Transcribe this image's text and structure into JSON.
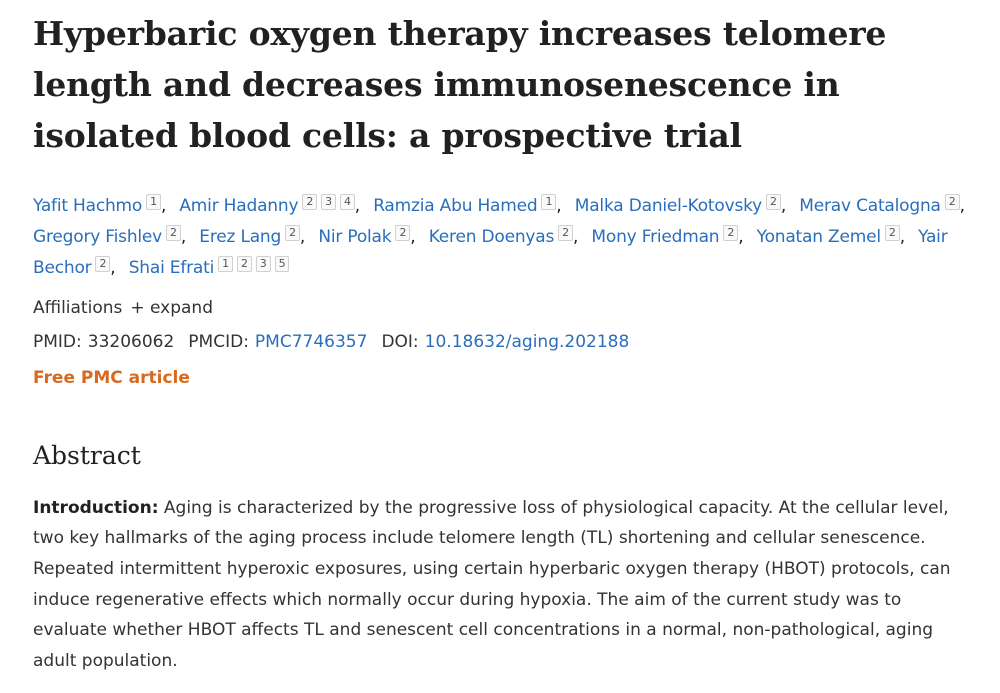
{
  "article": {
    "title": "Hyperbaric oxygen therapy increases telomere length and decreases immunosenescence in isolated blood cells: a prospective trial",
    "authors": [
      {
        "name": "Yafit Hachmo",
        "refs": [
          "1"
        ]
      },
      {
        "name": "Amir Hadanny",
        "refs": [
          "2",
          "3",
          "4"
        ]
      },
      {
        "name": "Ramzia Abu Hamed",
        "refs": [
          "1"
        ]
      },
      {
        "name": "Malka Daniel-Kotovsky",
        "refs": [
          "2"
        ]
      },
      {
        "name": "Merav Catalogna",
        "refs": [
          "2"
        ]
      },
      {
        "name": "Gregory Fishlev",
        "refs": [
          "2"
        ]
      },
      {
        "name": "Erez Lang",
        "refs": [
          "2"
        ]
      },
      {
        "name": "Nir Polak",
        "refs": [
          "2"
        ]
      },
      {
        "name": "Keren Doenyas",
        "refs": [
          "2"
        ]
      },
      {
        "name": "Mony Friedman",
        "refs": [
          "2"
        ]
      },
      {
        "name": "Yonatan Zemel",
        "refs": [
          "2"
        ]
      },
      {
        "name": "Yair Bechor",
        "refs": [
          "2"
        ]
      },
      {
        "name": "Shai Efrati",
        "refs": [
          "1",
          "2",
          "3",
          "5"
        ]
      }
    ],
    "affiliations_label": "Affiliations",
    "expand_label": "+ expand",
    "pmid_label": "PMID:",
    "pmid": "33206062",
    "pmcid_label": "PMCID:",
    "pmcid": "PMC7746357",
    "doi_label": "DOI:",
    "doi": "10.18632/aging.202188",
    "free_pmc": "Free PMC article"
  },
  "abstract": {
    "heading": "Abstract",
    "intro_label": "Introduction:",
    "intro_text": "Aging is characterized by the progressive loss of physiological capacity. At the cellular level, two key hallmarks of the aging process include telomere length (TL) shortening and cellular senescence. Repeated intermittent hyperoxic exposures, using certain hyperbaric oxygen therapy (HBOT) protocols, can induce regenerative effects which normally occur during hypoxia. The aim of the current study was to evaluate whether HBOT affects TL and senescent cell concentrations in a normal, non-pathological, aging adult population."
  },
  "colors": {
    "link": "#2a6ebb",
    "free_pmc": "#d86a1f",
    "text": "#212121"
  }
}
